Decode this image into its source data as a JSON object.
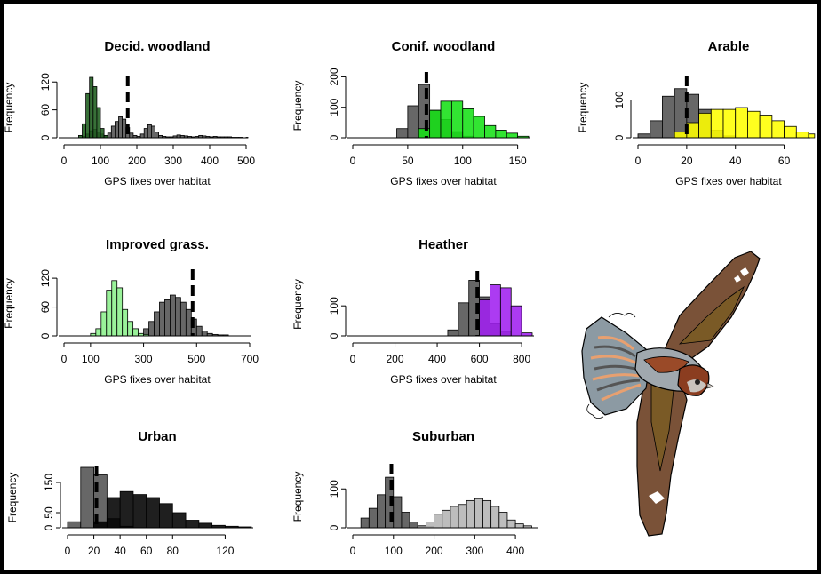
{
  "colors": {
    "gray_bar": "#5f5f5f",
    "decid": "#1d5c1d",
    "conif": "#16e016",
    "arable": "#ffff00",
    "improved": "#8cf08c",
    "heather": "#a020f0",
    "urban": "#000000",
    "suburban": "#b4b4b4",
    "border": "#000000",
    "background": "#ffffff"
  },
  "chart_data": [
    {
      "type": "bar",
      "title": "Decid. woodland",
      "xlabel": "GPS fixes over habitat",
      "ylabel": "Frequency",
      "xlim": [
        0,
        500
      ],
      "ylim": [
        0,
        130
      ],
      "xticks": [
        0,
        100,
        200,
        300,
        400,
        500
      ],
      "yticks": [
        0,
        60,
        120
      ],
      "dashed_line_x": 175,
      "series": [
        {
          "fill": "colored",
          "color": "#1d5c1d",
          "bin_start": 40,
          "bin_width": 10,
          "values": [
            5,
            30,
            95,
            130,
            110,
            65,
            20,
            5
          ]
        },
        {
          "fill": "gray",
          "color": "#5f5f5f",
          "bin_start": 40,
          "bin_width": 10,
          "values": [
            0,
            3,
            8,
            15,
            18,
            12,
            8,
            5,
            10,
            25,
            35,
            45,
            40,
            22,
            10,
            5,
            3,
            8,
            20,
            28,
            25,
            12,
            5,
            3,
            2,
            2,
            4,
            6,
            5,
            4,
            3,
            2,
            3,
            5,
            4,
            3,
            2,
            3,
            2,
            2,
            2,
            2,
            1,
            1,
            1,
            0,
            1
          ]
        }
      ]
    },
    {
      "type": "bar",
      "title": "Conif. woodland",
      "xlabel": "GPS fixes over habitat",
      "ylabel": "Frequency",
      "xlim": [
        0,
        160
      ],
      "ylim": [
        0,
        210
      ],
      "xticks": [
        0,
        50,
        100,
        150
      ],
      "yticks": [
        0,
        100,
        200
      ],
      "dashed_line_x": 67,
      "series": [
        {
          "fill": "colored",
          "color": "#16e016",
          "bin_start": 60,
          "bin_width": 10,
          "values": [
            30,
            90,
            120,
            120,
            95,
            70,
            40,
            25,
            15,
            5
          ]
        },
        {
          "fill": "gray",
          "color": "#5f5f5f",
          "bin_start": 40,
          "bin_width": 10,
          "values": [
            30,
            105,
            175,
            90,
            60,
            20,
            5
          ]
        }
      ]
    },
    {
      "type": "bar",
      "title": "Arable",
      "xlabel": "GPS fixes over habitat",
      "ylabel": "Frequency",
      "xlim": [
        0,
        70
      ],
      "ylim": [
        0,
        160
      ],
      "xticks": [
        0,
        20,
        40,
        60
      ],
      "yticks": [
        0,
        100
      ],
      "dashed_line_x": 20,
      "series": [
        {
          "fill": "colored",
          "color": "#ffff00",
          "bin_start": 15,
          "bin_width": 5,
          "values": [
            15,
            40,
            65,
            75,
            75,
            80,
            70,
            60,
            45,
            30,
            15,
            10,
            5
          ]
        },
        {
          "fill": "gray",
          "color": "#5f5f5f",
          "bin_start": 0,
          "bin_width": 5,
          "values": [
            10,
            45,
            110,
            130,
            115,
            75,
            20,
            5
          ]
        }
      ]
    },
    {
      "type": "bar",
      "title": "Improved grass.",
      "xlabel": "GPS fixes over habitat",
      "ylabel": "Frequency",
      "xlim": [
        0,
        700
      ],
      "ylim": [
        0,
        135
      ],
      "xticks": [
        0,
        100,
        300,
        500,
        700
      ],
      "yticks": [
        0,
        60,
        120
      ],
      "dashed_line_x": 485,
      "series": [
        {
          "fill": "colored",
          "color": "#8cf08c",
          "bin_start": 100,
          "bin_width": 20,
          "values": [
            5,
            15,
            50,
            95,
            115,
            100,
            55,
            30,
            15,
            5,
            3
          ]
        },
        {
          "fill": "gray",
          "color": "#5f5f5f",
          "bin_start": 300,
          "bin_width": 20,
          "values": [
            15,
            30,
            50,
            70,
            75,
            85,
            80,
            70,
            55,
            35,
            20,
            10,
            5,
            3,
            2,
            2
          ]
        }
      ]
    },
    {
      "type": "bar",
      "title": "Heather",
      "xlabel": "GPS fixes over habitat",
      "ylabel": "Frequency",
      "xlim": [
        0,
        850
      ],
      "ylim": [
        0,
        210
      ],
      "xticks": [
        0,
        200,
        400,
        600,
        800
      ],
      "yticks": [
        0,
        100
      ],
      "dashed_line_x": 590,
      "series": [
        {
          "fill": "colored",
          "color": "#a020f0",
          "bin_start": 600,
          "bin_width": 50,
          "values": [
            120,
            170,
            160,
            100,
            10
          ]
        },
        {
          "fill": "gray",
          "color": "#5f5f5f",
          "bin_start": 450,
          "bin_width": 50,
          "values": [
            20,
            110,
            185,
            130,
            40,
            15
          ]
        }
      ]
    },
    {
      "type": "bar",
      "title": "Urban",
      "xlabel": "",
      "ylabel": "Frequency",
      "xlim": [
        0,
        140
      ],
      "ylim": [
        0,
        200
      ],
      "xticks": [
        0,
        20,
        40,
        60,
        80,
        120
      ],
      "yticks": [
        0,
        50,
        150
      ],
      "dashed_line_x": 22,
      "series": [
        {
          "fill": "colored",
          "color": "#000000",
          "bin_start": 20,
          "bin_width": 10,
          "values": [
            20,
            100,
            120,
            110,
            100,
            80,
            50,
            25,
            15,
            8,
            5,
            3
          ]
        },
        {
          "fill": "gray",
          "color": "#5f5f5f",
          "bin_start": 0,
          "bin_width": 10,
          "values": [
            20,
            200,
            175,
            30,
            5
          ]
        }
      ]
    },
    {
      "type": "bar",
      "title": "Suburban",
      "xlabel": "",
      "ylabel": "Frequency",
      "xlim": [
        0,
        450
      ],
      "ylim": [
        0,
        160
      ],
      "xticks": [
        0,
        100,
        200,
        300,
        400
      ],
      "yticks": [
        0,
        100
      ],
      "dashed_line_x": 95,
      "series": [
        {
          "fill": "colored",
          "color": "#b4b4b4",
          "bin_start": 160,
          "bin_width": 20,
          "values": [
            5,
            15,
            35,
            45,
            55,
            60,
            70,
            75,
            70,
            55,
            40,
            20,
            10,
            5
          ]
        },
        {
          "fill": "gray",
          "color": "#5f5f5f",
          "bin_start": 20,
          "bin_width": 20,
          "values": [
            25,
            50,
            85,
            130,
            80,
            40,
            15,
            5,
            3
          ]
        }
      ]
    }
  ]
}
